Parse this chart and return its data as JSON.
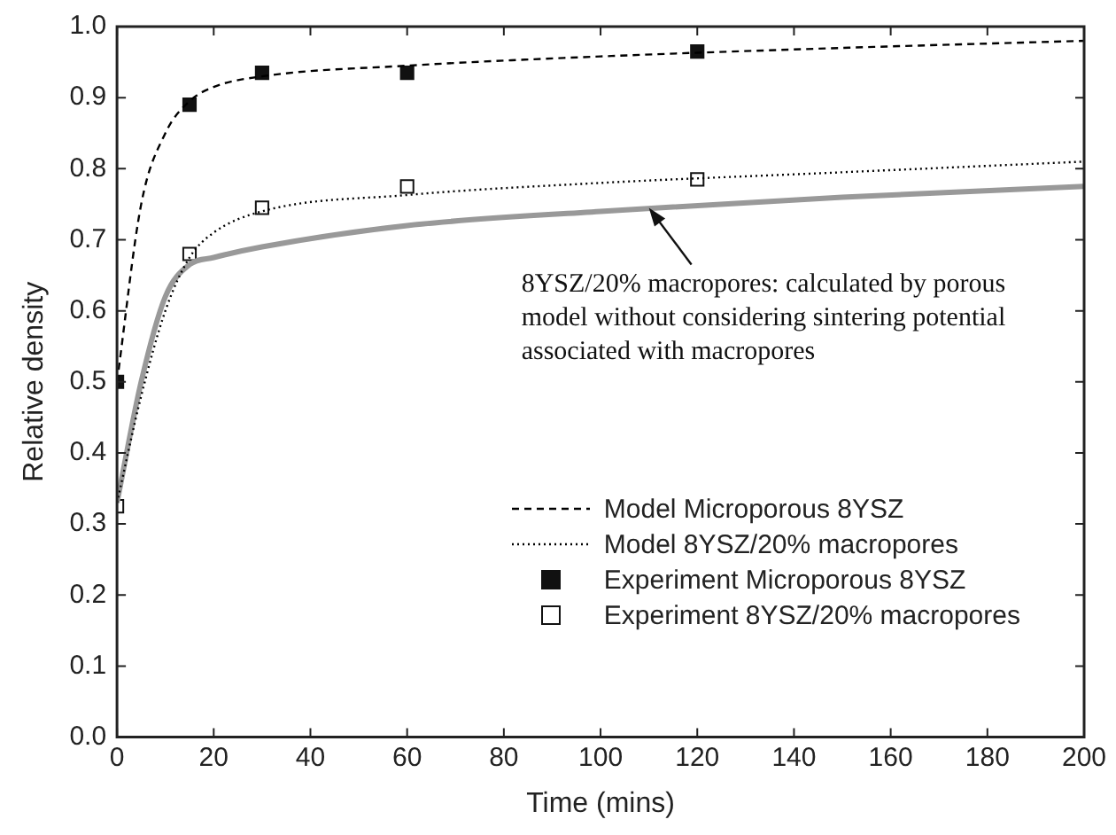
{
  "chart_data": {
    "type": "line",
    "xlabel": "Time (mins)",
    "ylabel": "Relative density",
    "xlim": [
      0,
      200
    ],
    "xticks": [
      0,
      20,
      40,
      60,
      80,
      100,
      120,
      140,
      160,
      180,
      200
    ],
    "ylim": [
      0,
      1
    ],
    "yticks": [
      {
        "value": 0,
        "label": "0.0"
      },
      {
        "value": 0.1,
        "label": "0.1"
      },
      {
        "value": 0.2,
        "label": "0.2"
      },
      {
        "value": 0.3,
        "label": "0.3"
      },
      {
        "value": 0.4,
        "label": "0.4"
      },
      {
        "value": 0.5,
        "label": "0.5"
      },
      {
        "value": 0.6,
        "label": "0.6"
      },
      {
        "value": 0.7,
        "label": "0.7"
      },
      {
        "value": 0.8,
        "label": "0.8"
      },
      {
        "value": 0.9,
        "label": "0.9"
      },
      {
        "value": 1,
        "label": "1.0"
      }
    ],
    "grid": false,
    "legend": "bottom right",
    "series": [
      {
        "name": "Model Microporous 8YSZ",
        "type": "line",
        "line_style": "dashed",
        "marker": "none",
        "color": "#000000",
        "x": [
          0,
          5,
          10,
          15,
          20,
          30,
          60,
          100,
          150,
          200
        ],
        "values": [
          0.5,
          0.75,
          0.85,
          0.895,
          0.915,
          0.93,
          0.945,
          0.958,
          0.97,
          0.98
        ]
      },
      {
        "name": "Model 8YSZ/20% macropores",
        "type": "line",
        "line_style": "dotted",
        "marker": "none",
        "color": "#000000",
        "x": [
          0,
          5,
          10,
          15,
          20,
          30,
          60,
          100,
          150,
          200
        ],
        "values": [
          0.33,
          0.48,
          0.6,
          0.675,
          0.71,
          0.74,
          0.763,
          0.78,
          0.795,
          0.81
        ]
      },
      {
        "type": "line",
        "line_style": "solid",
        "marker": "none",
        "color": "#999999",
        "x": [
          0,
          5,
          10,
          15,
          20,
          30,
          60,
          100,
          150,
          200
        ],
        "values": [
          0.33,
          0.5,
          0.62,
          0.665,
          0.675,
          0.69,
          0.72,
          0.74,
          0.76,
          0.775
        ]
      },
      {
        "name": "Experiment Microporous 8YSZ",
        "type": "scatter",
        "marker": "square",
        "color": "#111111",
        "x": [
          0,
          15,
          30,
          60,
          120
        ],
        "values": [
          0.5,
          0.89,
          0.935,
          0.935,
          0.965
        ]
      },
      {
        "name": "Experiment 8YSZ/20% macropores",
        "type": "scatter",
        "marker": "square",
        "color": "#ffffff",
        "x": [
          0,
          15,
          30,
          60,
          120
        ],
        "values": [
          0.325,
          0.68,
          0.745,
          0.775,
          0.785
        ]
      }
    ],
    "annotations": [
      {
        "text": "8YSZ/20% macropores: calculated by porous model without considering sintering potential associated with macropores",
        "x": 110,
        "y": 0.745
      }
    ]
  }
}
